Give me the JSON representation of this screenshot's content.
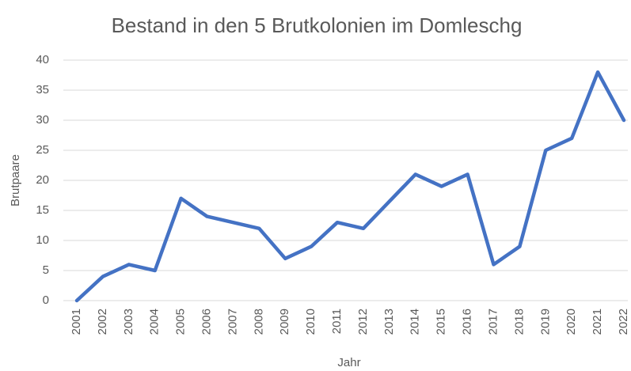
{
  "chart_data": {
    "type": "line",
    "title": "Bestand in den 5 Brutkolonien im Domleschg",
    "x_label": "Jahr",
    "y_label": "Brutpaare",
    "categories": [
      "2001",
      "2002",
      "2003",
      "2004",
      "2005",
      "2006",
      "2007",
      "2008",
      "2009",
      "2010",
      "2011",
      "2012",
      "2013",
      "2014",
      "2015",
      "2016",
      "2017",
      "2018",
      "2019",
      "2020",
      "2021",
      "2022"
    ],
    "series": [
      {
        "name": "Brutpaare",
        "color": "#4472c4",
        "values": [
          0,
          4,
          6,
          5,
          17,
          14,
          13,
          12,
          7,
          9,
          13,
          12,
          16.5,
          21,
          19,
          21,
          6,
          9,
          25,
          27,
          38,
          30
        ]
      }
    ],
    "ylim": [
      0,
      40
    ],
    "yticks": [
      0,
      5,
      10,
      15,
      20,
      25,
      30,
      35,
      40
    ],
    "grid": true
  }
}
